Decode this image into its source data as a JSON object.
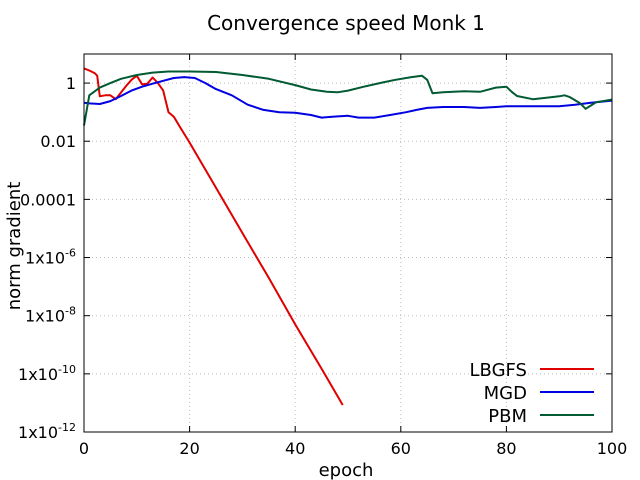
{
  "chart_data": {
    "type": "line",
    "title": "Convergence speed Monk 1",
    "xlabel": "epoch",
    "ylabel": "norm gradient",
    "xlim": [
      0,
      100
    ],
    "ylim": [
      1e-12,
      10
    ],
    "yscale": "log",
    "grid": true,
    "legend_position": "bottom-right",
    "x_ticks": [
      {
        "value": 0,
        "label": "0"
      },
      {
        "value": 20,
        "label": "20"
      },
      {
        "value": 40,
        "label": "40"
      },
      {
        "value": 60,
        "label": "60"
      },
      {
        "value": 80,
        "label": "80"
      },
      {
        "value": 100,
        "label": "100"
      }
    ],
    "y_ticks": [
      {
        "value": 1,
        "label": "1",
        "exp": ""
      },
      {
        "value": 0.01,
        "label": "0.01",
        "exp": ""
      },
      {
        "value": 0.0001,
        "label": "0.0001",
        "exp": ""
      },
      {
        "value": 1e-06,
        "label": "1x10",
        "exp": "-6"
      },
      {
        "value": 1e-08,
        "label": "1x10",
        "exp": "-8"
      },
      {
        "value": 1e-10,
        "label": "1x10",
        "exp": "-10"
      },
      {
        "value": 1e-12,
        "label": "1x10",
        "exp": "-12"
      }
    ],
    "series": [
      {
        "name": "LBGFS",
        "color": "#e00000",
        "x": [
          0,
          1,
          2,
          2.5,
          3,
          4,
          5,
          6,
          8,
          9,
          10,
          11,
          12,
          13,
          14,
          15,
          16,
          17,
          18,
          20,
          25,
          30,
          35,
          40,
          45,
          49
        ],
        "y": [
          3.2,
          2.7,
          2.2,
          1.8,
          0.35,
          0.38,
          0.38,
          0.28,
          0.8,
          1.3,
          1.8,
          0.9,
          0.95,
          1.55,
          1.0,
          0.55,
          0.1,
          0.07,
          0.035,
          0.009,
          0.00025,
          7e-06,
          2e-07,
          5e-09,
          1.5e-10,
          8.5e-12
        ]
      },
      {
        "name": "MGD",
        "color": "#0000e0",
        "x": [
          0,
          1,
          3,
          5,
          7,
          9,
          11,
          13,
          15,
          17,
          19,
          21,
          23,
          25,
          28,
          31,
          34,
          37,
          40,
          43,
          45,
          47,
          50,
          52,
          55,
          58,
          61,
          63,
          65,
          68,
          72,
          75,
          78,
          80,
          83,
          86,
          90,
          93,
          96,
          100
        ],
        "y": [
          0.21,
          0.2,
          0.19,
          0.24,
          0.36,
          0.55,
          0.75,
          0.95,
          1.2,
          1.5,
          1.6,
          1.5,
          1.0,
          0.62,
          0.38,
          0.18,
          0.12,
          0.1,
          0.095,
          0.08,
          0.065,
          0.07,
          0.075,
          0.065,
          0.065,
          0.08,
          0.1,
          0.12,
          0.14,
          0.15,
          0.15,
          0.14,
          0.15,
          0.16,
          0.16,
          0.16,
          0.16,
          0.18,
          0.21,
          0.25
        ]
      },
      {
        "name": "PBM",
        "color": "#005a32",
        "x": [
          0,
          1,
          3,
          5,
          7,
          10,
          13,
          16,
          20,
          25,
          30,
          35,
          40,
          43,
          46,
          48,
          50,
          53,
          56,
          59,
          62,
          64,
          65,
          66,
          68,
          72,
          75,
          78,
          80,
          81,
          82,
          85,
          88,
          90,
          91,
          92,
          94,
          95,
          96,
          97,
          100
        ],
        "y": [
          0.035,
          0.38,
          0.7,
          1.0,
          1.4,
          1.9,
          2.3,
          2.5,
          2.5,
          2.4,
          1.9,
          1.4,
          0.85,
          0.6,
          0.5,
          0.48,
          0.55,
          0.75,
          1.0,
          1.3,
          1.6,
          1.8,
          1.3,
          0.45,
          0.48,
          0.52,
          0.5,
          0.7,
          0.75,
          0.5,
          0.36,
          0.28,
          0.32,
          0.35,
          0.38,
          0.33,
          0.2,
          0.13,
          0.17,
          0.22,
          0.27
        ]
      }
    ]
  }
}
